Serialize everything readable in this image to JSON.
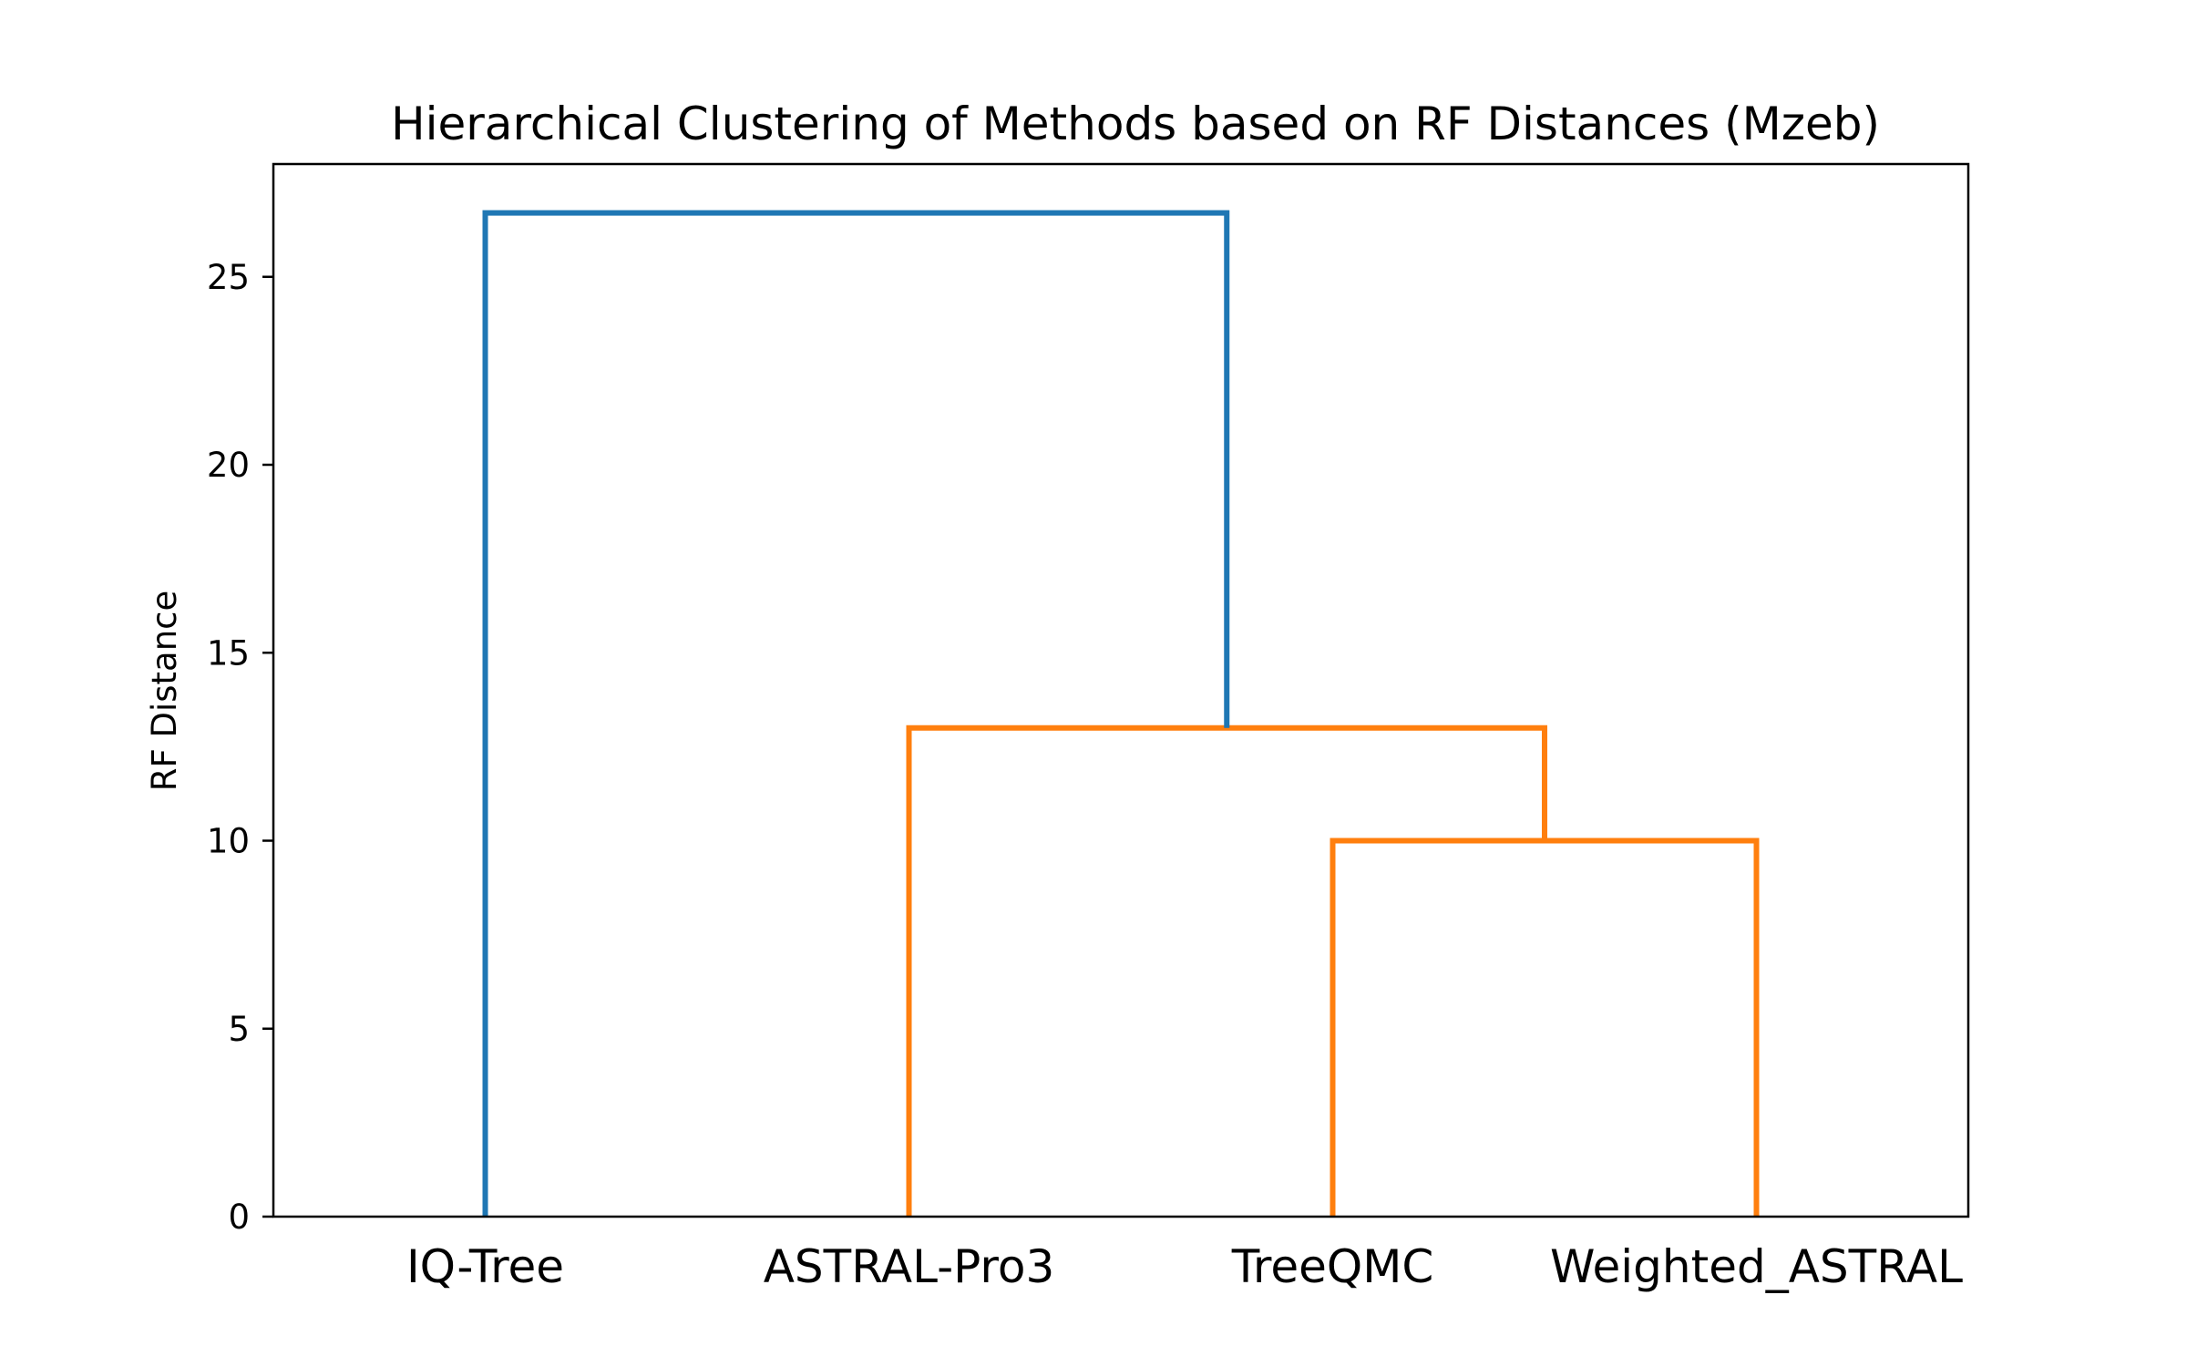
{
  "chart_data": {
    "type": "dendrogram",
    "title": "Hierarchical Clustering of Methods based on RF Distances (Mzeb)",
    "xlabel": "",
    "ylabel": "RF Distance",
    "ylim": [
      0,
      28
    ],
    "yticks": [
      0,
      5,
      10,
      15,
      20,
      25
    ],
    "leaves": [
      "IQ-Tree",
      "ASTRAL-Pro3",
      "TreeQMC",
      "Weighted_ASTRAL"
    ],
    "links": [
      {
        "left": "TreeQMC",
        "right": "Weighted_ASTRAL",
        "height": 10.0,
        "color": "#ff7f0e"
      },
      {
        "left": "ASTRAL-Pro3",
        "right": "TreeQMC+Weighted_ASTRAL",
        "height": 13.0,
        "color": "#ff7f0e"
      },
      {
        "left": "IQ-Tree",
        "right": "ASTRAL-Pro3+TreeQMC+Weighted_ASTRAL",
        "height": 26.7,
        "color": "#1f77b4"
      }
    ],
    "colors": {
      "cluster_above_threshold": "#1f77b4",
      "cluster_orange": "#ff7f0e"
    },
    "grid": false,
    "legend": "none"
  }
}
